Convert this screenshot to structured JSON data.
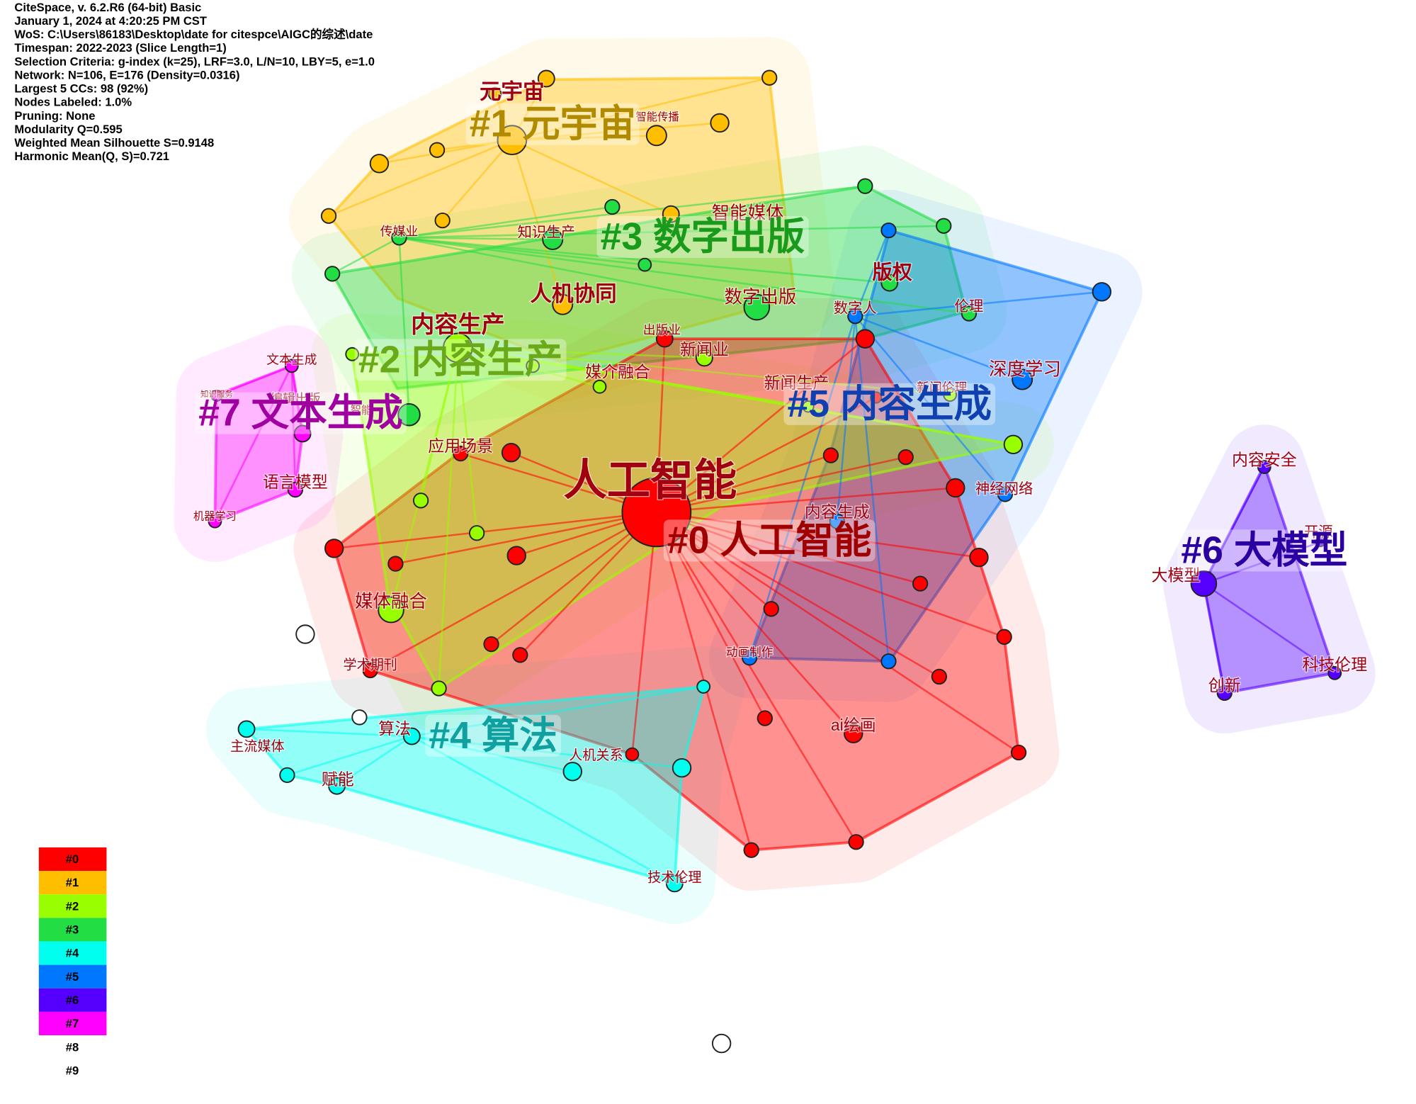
{
  "header": {
    "lines": [
      "CiteSpace, v. 6.2.R6 (64-bit) Basic",
      "January 1, 2024 at 4:20:25 PM CST",
      "WoS: C:\\Users\\86183\\Desktop\\date for citespce\\AIGC的综述\\date",
      "Timespan: 2022-2023 (Slice Length=1)",
      "Selection Criteria: g-index (k=25), LRF=3.0, L/N=10, LBY=5, e=1.0",
      "Network: N=106, E=176 (Density=0.0316)",
      "Largest 5 CCs: 98 (92%)",
      "Nodes Labeled: 1.0%",
      "Pruning: None",
      "Modularity Q=0.595",
      "Weighted Mean Silhouette S=0.9148",
      "Harmonic Mean(Q, S)=0.721"
    ]
  },
  "clusters": [
    {
      "label": "#0 人工智能"
    },
    {
      "label": "#1 元宇宙"
    },
    {
      "label": "#2 内容生产"
    },
    {
      "label": "#3 数字出版"
    },
    {
      "label": "#4 算法"
    },
    {
      "label": "#5 内容生成"
    },
    {
      "label": "#6 大模型"
    },
    {
      "label": "#7 文本生成"
    }
  ],
  "nodes": [
    {
      "label": "元宇宙"
    },
    {
      "label": "智能传播"
    },
    {
      "label": "传媒业"
    },
    {
      "label": "知识生产"
    },
    {
      "label": "智能媒体"
    },
    {
      "label": "人机协同"
    },
    {
      "label": "数字出版"
    },
    {
      "label": "版权"
    },
    {
      "label": "数字人"
    },
    {
      "label": "伦理"
    },
    {
      "label": "内容生产"
    },
    {
      "label": "出版业"
    },
    {
      "label": "新闻业"
    },
    {
      "label": "媒介融合"
    },
    {
      "label": "文本生成"
    },
    {
      "label": "深度学习"
    },
    {
      "label": "新闻生产"
    },
    {
      "label": "新闻伦理"
    },
    {
      "label": "知识服务"
    },
    {
      "label": "编辑出版"
    },
    {
      "label": "智能"
    },
    {
      "label": "应用场景"
    },
    {
      "label": "人工智能"
    },
    {
      "label": "神经网络"
    },
    {
      "label": "语言模型"
    },
    {
      "label": "内容生成"
    },
    {
      "label": "机器学习"
    },
    {
      "label": "媒体融合"
    },
    {
      "label": "动画制作"
    },
    {
      "label": "学术期刊"
    },
    {
      "label": "算法"
    },
    {
      "label": "主流媒体"
    },
    {
      "label": "人机关系"
    },
    {
      "label": "ai绘画"
    },
    {
      "label": "赋能"
    },
    {
      "label": "技术伦理"
    },
    {
      "label": "内容安全"
    },
    {
      "label": "开源"
    },
    {
      "label": "大模型"
    },
    {
      "label": "科技伦理"
    },
    {
      "label": "创新"
    }
  ],
  "legend": [
    {
      "label": "#0",
      "color": "#ff0000"
    },
    {
      "label": "#1",
      "color": "#ffbf00"
    },
    {
      "label": "#2",
      "color": "#99ff00"
    },
    {
      "label": "#3",
      "color": "#22dd44"
    },
    {
      "label": "#4",
      "color": "#00ffee"
    },
    {
      "label": "#5",
      "color": "#0077ff"
    },
    {
      "label": "#6",
      "color": "#5500ff"
    },
    {
      "label": "#7",
      "color": "#ff00ff"
    },
    {
      "label": "#8",
      "color": "#ffffff"
    },
    {
      "label": "#9",
      "color": "#ffffff"
    }
  ]
}
